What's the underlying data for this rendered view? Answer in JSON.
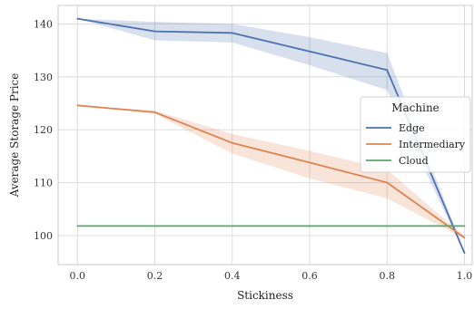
{
  "chart_data": {
    "type": "line",
    "title": "",
    "xlabel": "Stickiness",
    "ylabel": "Average Storage Price",
    "xlim": [
      -0.05,
      1.02
    ],
    "ylim": [
      94.5,
      143.5
    ],
    "xticks": [
      0.0,
      0.2,
      0.4,
      0.6,
      0.8,
      1.0
    ],
    "xtick_labels": [
      "0.0",
      "0.2",
      "0.4",
      "0.6",
      "0.8",
      "1.0"
    ],
    "yticks": [
      100,
      110,
      120,
      130,
      140
    ],
    "ytick_labels": [
      "100",
      "110",
      "120",
      "130",
      "140"
    ],
    "grid": true,
    "legend": {
      "title": "Machine",
      "placement": "center-right"
    },
    "x": [
      0.0,
      0.2,
      0.4,
      0.6,
      0.8,
      1.0
    ],
    "series": [
      {
        "name": "Edge",
        "color": "#4c72b0",
        "values": [
          141.0,
          138.6,
          138.3,
          134.8,
          131.3,
          96.7
        ],
        "ci_lower": [
          141.0,
          136.9,
          136.5,
          132.2,
          127.5,
          96.5
        ],
        "ci_upper": [
          141.0,
          140.4,
          140.0,
          137.5,
          134.5,
          96.9
        ]
      },
      {
        "name": "Intermediary",
        "color": "#dd8452",
        "values": [
          124.6,
          123.3,
          117.5,
          113.8,
          110.0,
          99.6
        ],
        "ci_lower": [
          124.6,
          123.0,
          115.5,
          110.8,
          107.0,
          99.4
        ],
        "ci_upper": [
          124.6,
          123.6,
          119.2,
          116.0,
          112.5,
          99.8
        ]
      },
      {
        "name": "Cloud",
        "color": "#55a868",
        "values": [
          101.8,
          101.8,
          101.8,
          101.8,
          101.8,
          101.8
        ],
        "ci_lower": [
          101.8,
          101.8,
          101.8,
          101.8,
          101.8,
          101.8
        ],
        "ci_upper": [
          101.8,
          101.8,
          101.8,
          101.8,
          101.8,
          101.8
        ]
      }
    ]
  }
}
